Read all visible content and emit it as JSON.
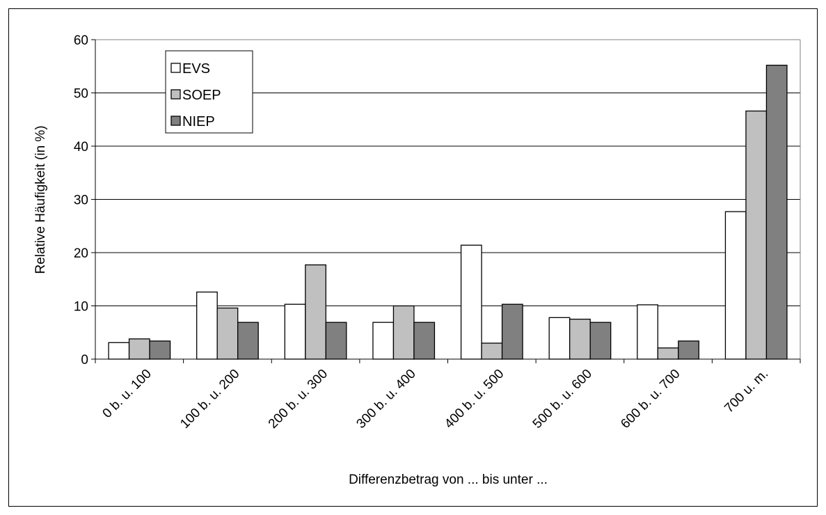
{
  "chart_data": {
    "type": "bar",
    "xlabel": "Differenzbetrag von ... bis unter ...",
    "ylabel": "Relative Häufigkeit (in %)",
    "ylim": [
      0,
      60
    ],
    "yticks": [
      0,
      10,
      20,
      30,
      40,
      50,
      60
    ],
    "grid": true,
    "legend": "top-left",
    "categories": [
      "0 b. u. 100",
      "100 b. u. 200",
      "200 b. u. 300",
      "300 b. u. 400",
      "400 b. u. 500",
      "500 b. u. 600",
      "600 b. u. 700",
      "700 u. m."
    ],
    "series": [
      {
        "name": "EVS",
        "color": "#ffffff",
        "values": [
          3.1,
          12.6,
          10.3,
          6.9,
          21.4,
          7.8,
          10.2,
          27.7
        ]
      },
      {
        "name": "SOEP",
        "color": "#c0c0c0",
        "values": [
          3.8,
          9.6,
          17.7,
          10.0,
          3.0,
          7.5,
          2.1,
          46.6
        ]
      },
      {
        "name": "NIEP",
        "color": "#808080",
        "values": [
          3.4,
          6.9,
          6.9,
          6.9,
          10.3,
          6.9,
          3.4,
          55.2
        ]
      }
    ]
  }
}
